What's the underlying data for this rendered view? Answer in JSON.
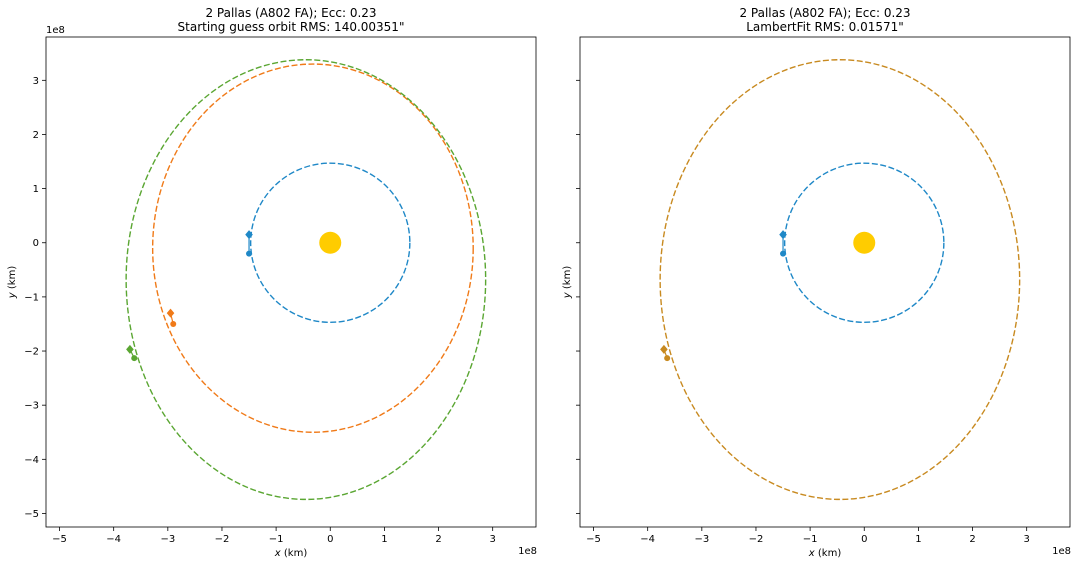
{
  "figure": {
    "background": "#ffffff",
    "colors": {
      "earth": "#1f88c7",
      "guess": "#f07a18",
      "fit": "#5aa632",
      "sun": "#ffcc00",
      "overlap": "#c88a20"
    }
  },
  "chart_data": [
    {
      "type": "scatter",
      "title": "2 Pallas (A802 FA); Ecc: 0.23",
      "subtitle": "Starting guess orbit RMS: 140.00351\"",
      "xlabel": "x (km)",
      "ylabel": "y (km)",
      "x_scale_label": "1e8",
      "y_scale_label": "1e8",
      "xlim": [
        -5.25,
        3.8
      ],
      "ylim": [
        -5.25,
        3.8
      ],
      "xticks": [
        "−5",
        "−4",
        "−3",
        "−2",
        "−1",
        "0",
        "1",
        "2",
        "3"
      ],
      "yticks": [
        "3",
        "2",
        "1",
        "0",
        "−1",
        "−2",
        "−3",
        "−4",
        "−5"
      ],
      "grid": false,
      "sun": {
        "x": 0,
        "y": 0
      },
      "series": [
        {
          "role": "earth orbit",
          "color_key": "earth",
          "cx": 0,
          "cy": 0,
          "rx": 1.47,
          "ry": 1.47,
          "points": [
            {
              "x": -1.5,
              "y": 0.15,
              "marker": "diamond"
            },
            {
              "x": -1.5,
              "y": -0.2,
              "marker": "circle"
            }
          ]
        },
        {
          "role": "starting guess orbit",
          "color_key": "guess",
          "cx": -0.32,
          "cy": -0.1,
          "rx": 2.96,
          "ry": 3.4,
          "points": [
            {
              "x": -2.95,
              "y": -1.3,
              "marker": "diamond"
            },
            {
              "x": -2.9,
              "y": -1.5,
              "marker": "circle"
            }
          ]
        },
        {
          "role": "fitted orbit",
          "color_key": "fit",
          "cx": -0.45,
          "cy": -0.68,
          "rx": 3.32,
          "ry": 4.06,
          "points": [
            {
              "x": -3.7,
              "y": -1.97,
              "marker": "diamond"
            },
            {
              "x": -3.62,
              "y": -2.13,
              "marker": "circle"
            }
          ]
        }
      ]
    },
    {
      "type": "scatter",
      "title": "2 Pallas (A802 FA); Ecc: 0.23",
      "subtitle": "LambertFit RMS: 0.01571\"",
      "xlabel": "x (km)",
      "ylabel": "y (km)",
      "x_scale_label": "1e8",
      "y_scale_label": "",
      "xlim": [
        -5.25,
        3.8
      ],
      "ylim": [
        -5.25,
        3.8
      ],
      "xticks": [
        "−5",
        "−4",
        "−3",
        "−2",
        "−1",
        "0",
        "1",
        "2",
        "3"
      ],
      "yticks": [],
      "grid": false,
      "sun": {
        "x": 0,
        "y": 0
      },
      "series": [
        {
          "role": "earth orbit",
          "color_key": "earth",
          "cx": 0,
          "cy": 0,
          "rx": 1.47,
          "ry": 1.47,
          "points": [
            {
              "x": -1.5,
              "y": 0.15,
              "marker": "diamond"
            },
            {
              "x": -1.5,
              "y": -0.2,
              "marker": "circle"
            }
          ]
        },
        {
          "role": "fitted orbit (overlapping)",
          "color_key": "overlap",
          "cx": -0.45,
          "cy": -0.68,
          "rx": 3.32,
          "ry": 4.06,
          "points": [
            {
              "x": -3.7,
              "y": -1.97,
              "marker": "diamond"
            },
            {
              "x": -3.64,
              "y": -2.13,
              "marker": "circle"
            }
          ]
        }
      ]
    }
  ]
}
